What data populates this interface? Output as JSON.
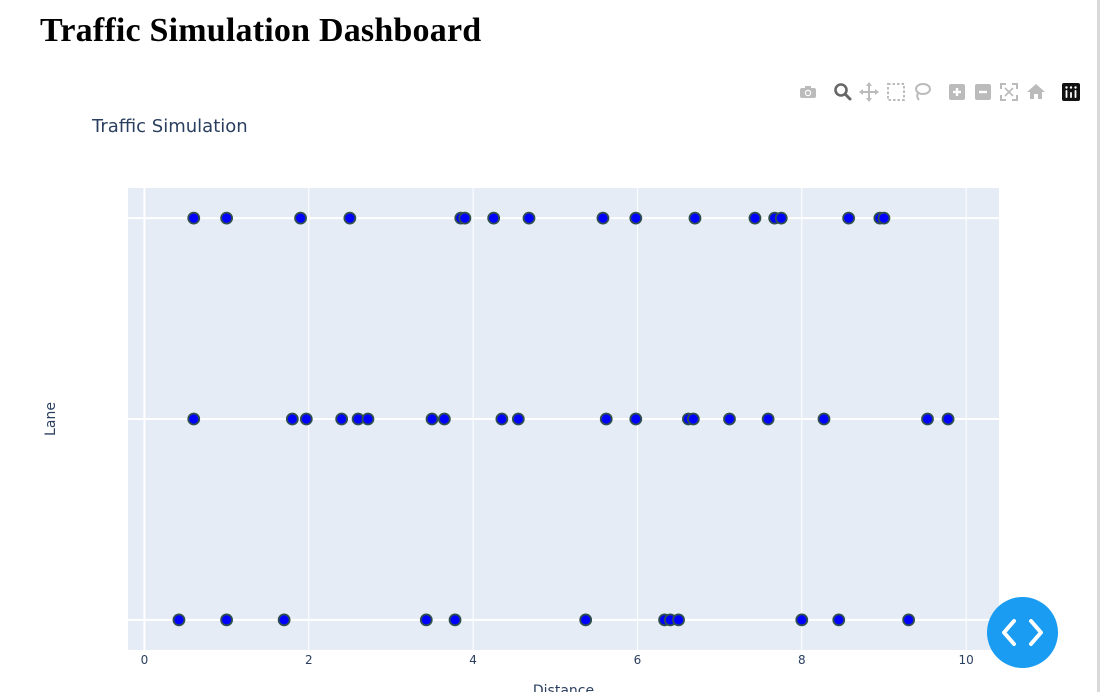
{
  "page": {
    "title": "Traffic Simulation Dashboard"
  },
  "modebar": {
    "buttons": [
      {
        "name": "camera-icon",
        "label": "Download plot as a png"
      },
      {
        "name": "zoom-icon",
        "label": "Zoom"
      },
      {
        "name": "pan-icon",
        "label": "Pan"
      },
      {
        "name": "box-select-icon",
        "label": "Box Select"
      },
      {
        "name": "lasso-icon",
        "label": "Lasso Select"
      },
      {
        "name": "zoom-in-icon",
        "label": "Zoom in"
      },
      {
        "name": "zoom-out-icon",
        "label": "Zoom out"
      },
      {
        "name": "autoscale-icon",
        "label": "Autoscale"
      },
      {
        "name": "reset-axes-icon",
        "label": "Reset axes"
      },
      {
        "name": "plotly-logo-icon",
        "label": "Produced with Plotly"
      }
    ]
  },
  "colors": {
    "plot_bg": "#e5ecf6",
    "grid": "#ffffff",
    "marker_fill": "#0000ff",
    "marker_line": "#2f4f4f",
    "text": "#2a3f5f",
    "fab": "#1a9cf2",
    "modebar_icon": "#bbbbbb",
    "modebar_active": "#777777"
  },
  "chart_data": {
    "type": "scatter",
    "title": "Traffic Simulation",
    "xlabel": "Distance",
    "ylabel": "Lane",
    "xlim": [
      -0.2,
      10.4
    ],
    "ylim": [
      -0.15,
      2.15
    ],
    "x_ticks": [
      0,
      2,
      4,
      6,
      8,
      10
    ],
    "y_ticks": [
      0,
      1,
      2
    ],
    "grid": true,
    "legend": "none",
    "series": [
      {
        "lane": 2,
        "x": [
          0.6,
          1.0,
          1.9,
          2.5,
          3.85,
          3.9,
          4.25,
          4.68,
          5.58,
          5.98,
          6.7,
          7.43,
          7.67,
          7.75,
          8.57,
          8.95,
          9.0
        ]
      },
      {
        "lane": 1,
        "x": [
          0.6,
          1.8,
          1.97,
          2.4,
          2.6,
          2.72,
          3.5,
          3.65,
          4.35,
          4.55,
          5.62,
          5.98,
          6.62,
          6.68,
          7.12,
          7.59,
          8.27,
          9.53,
          9.78
        ]
      },
      {
        "lane": 0,
        "x": [
          0.42,
          1.0,
          1.7,
          3.43,
          3.78,
          5.37,
          6.33,
          6.4,
          6.5,
          8.0,
          8.45,
          9.3
        ]
      }
    ]
  },
  "fab": {
    "name": "code-toggle"
  }
}
